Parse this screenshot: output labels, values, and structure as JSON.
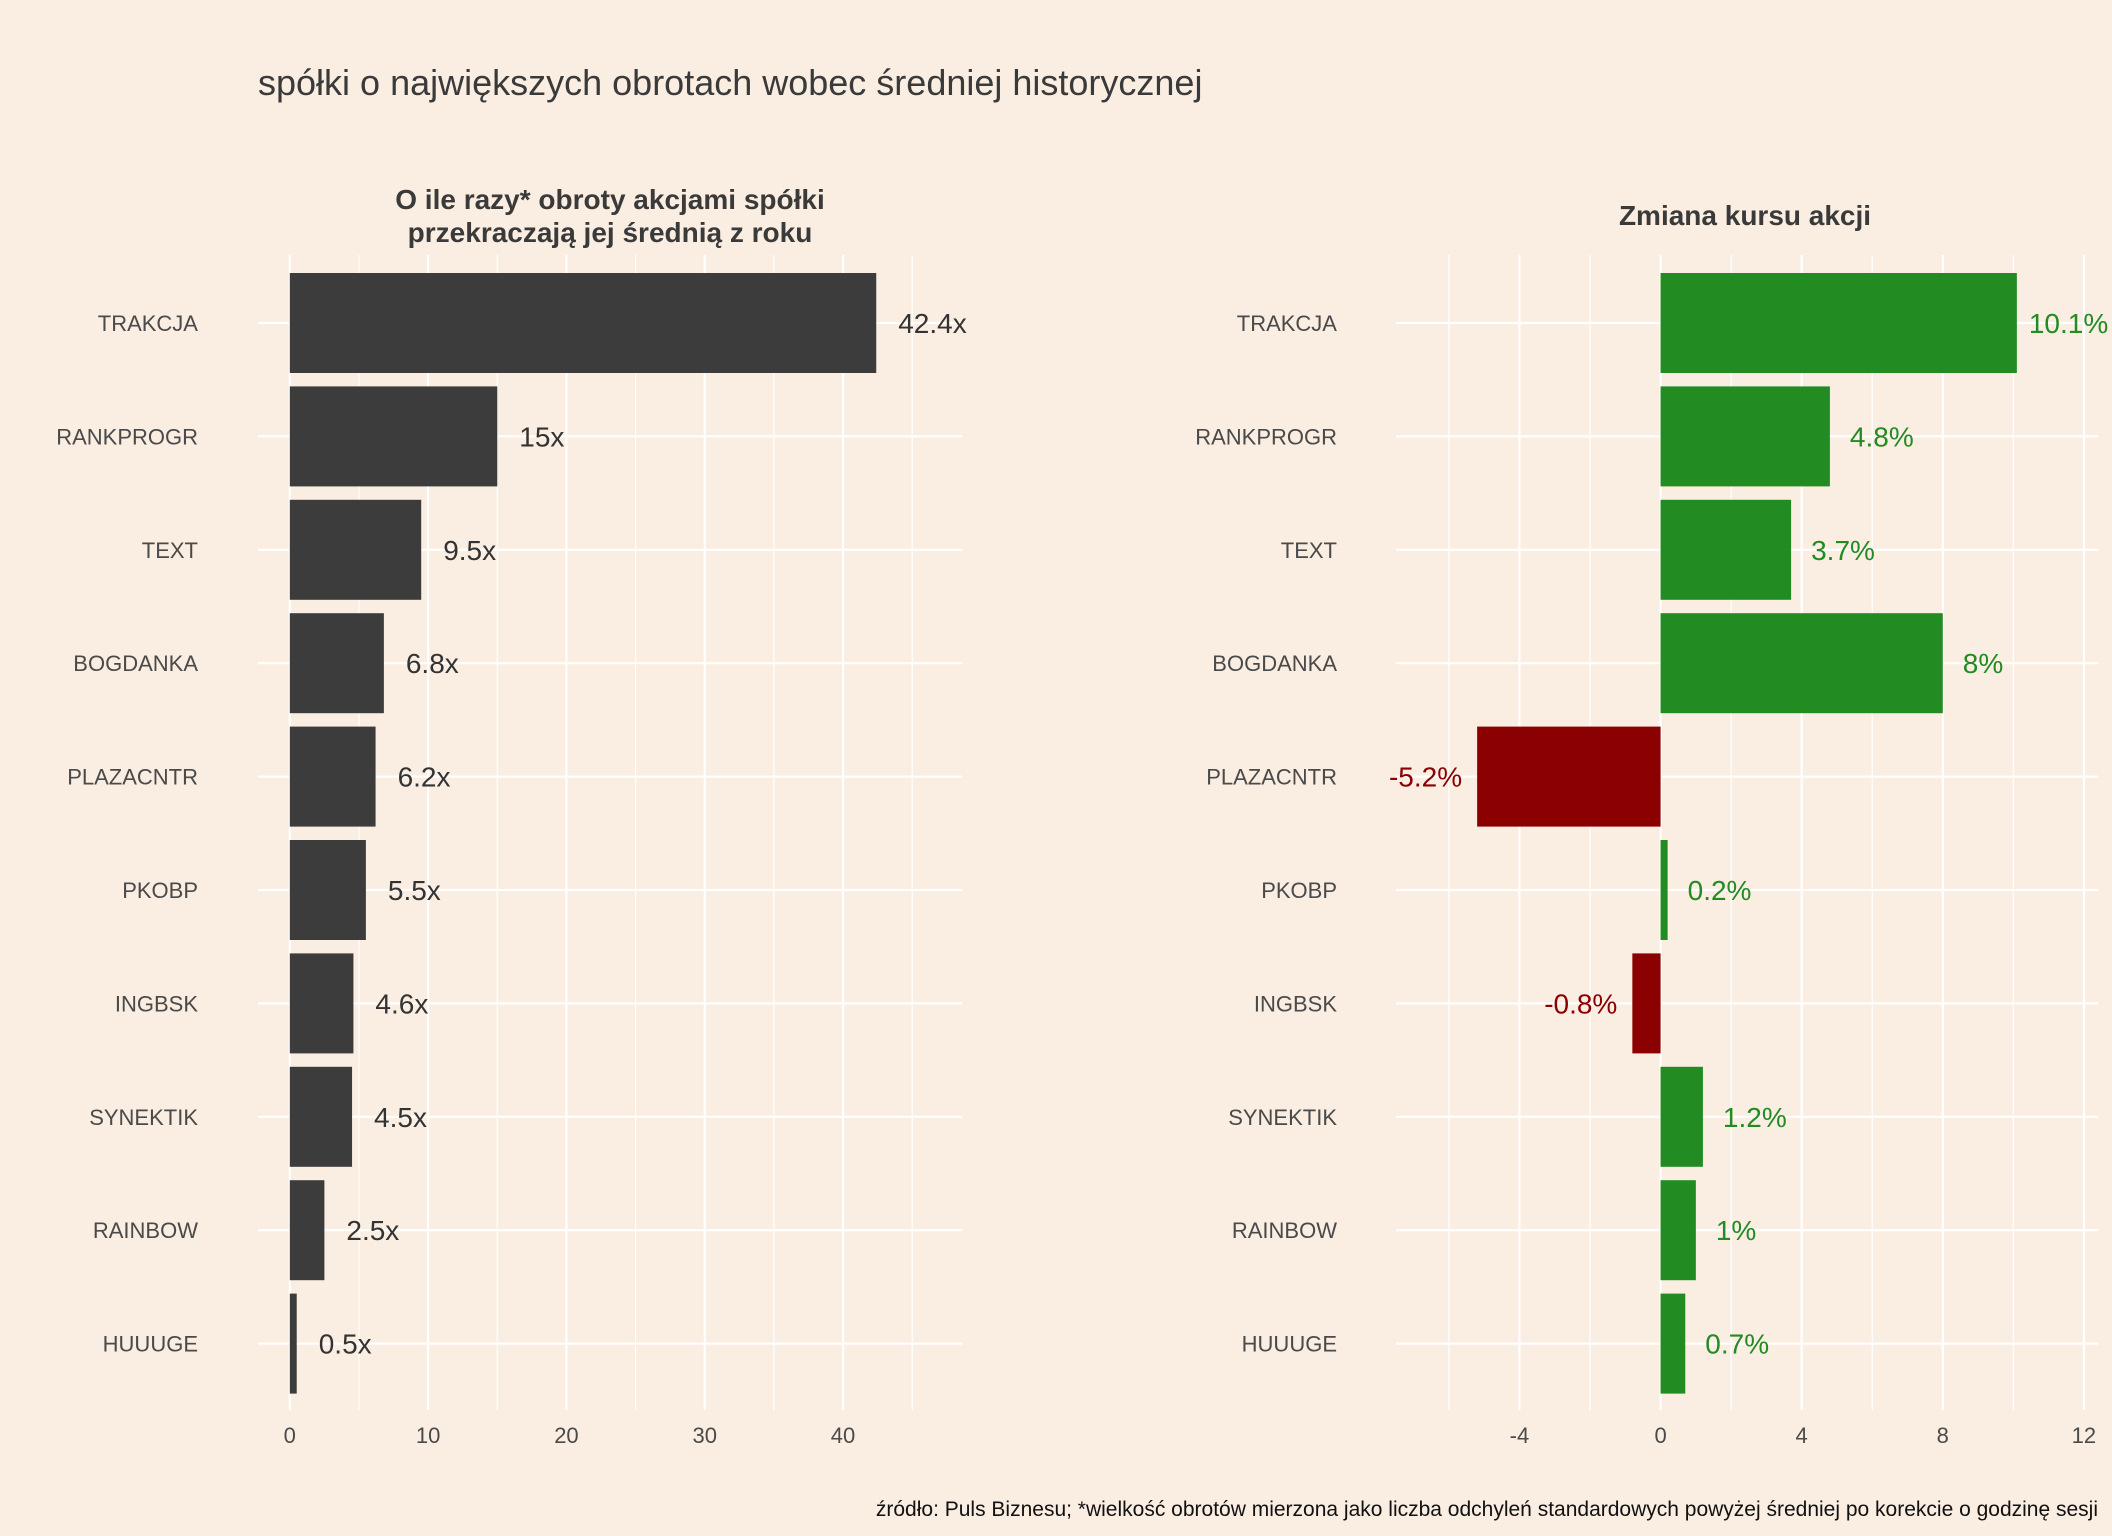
{
  "title": "spółki o największych obrotach wobec średniej historycznej",
  "caption": "źródło: Puls Biznesu; *wielkość obrotów mierzona jako liczba odchyleń standardowych powyżej średniej po korekcie o godzinę sesji",
  "colors": {
    "background": "#FAEDE1",
    "turnover_bar": "#3C3C3C",
    "positive": "#228B22",
    "negative": "#8B0000",
    "text": "#3a3a3a",
    "grid": "#FFFFFF"
  },
  "chart_data": [
    {
      "type": "bar",
      "orientation": "horizontal",
      "title_lines": [
        "O ile razy* obroty akcjami spółki",
        "przekraczają jej średnią z roku"
      ],
      "categories": [
        "TRAKCJA",
        "RANKPROGR",
        "TEXT",
        "BOGDANKA",
        "PLAZACNTR",
        "PKOBP",
        "INGBSK",
        "SYNEKTIK",
        "RAINBOW",
        "HUUUGE"
      ],
      "values": [
        42.4,
        15,
        9.5,
        6.8,
        6.2,
        5.5,
        4.6,
        4.5,
        2.5,
        0.5
      ],
      "labels": [
        "42.4x",
        "15x",
        "9.5x",
        "6.8x",
        "6.2x",
        "5.5x",
        "4.6x",
        "4.5x",
        "2.5x",
        "0.5x"
      ],
      "xlim": [
        -2.3,
        48.6
      ],
      "xticks": [
        0,
        10,
        20,
        30,
        40
      ],
      "grid": true
    },
    {
      "type": "bar",
      "orientation": "horizontal",
      "title": "Zmiana kursu akcji",
      "categories": [
        "TRAKCJA",
        "RANKPROGR",
        "TEXT",
        "BOGDANKA",
        "PLAZACNTR",
        "PKOBP",
        "INGBSK",
        "SYNEKTIK",
        "RAINBOW",
        "HUUUGE"
      ],
      "values": [
        10.1,
        4.8,
        3.7,
        8,
        -5.2,
        0.2,
        -0.8,
        1.2,
        1,
        0.7
      ],
      "labels": [
        "10.1%",
        "4.8%",
        "3.7%",
        "8%",
        "-5.2%",
        "0.2%",
        "-0.8%",
        "1.2%",
        "1%",
        "0.7%"
      ],
      "xlim": [
        -7.5,
        12.4
      ],
      "xticks": [
        -4,
        0,
        4,
        8,
        12
      ],
      "grid": true
    }
  ]
}
